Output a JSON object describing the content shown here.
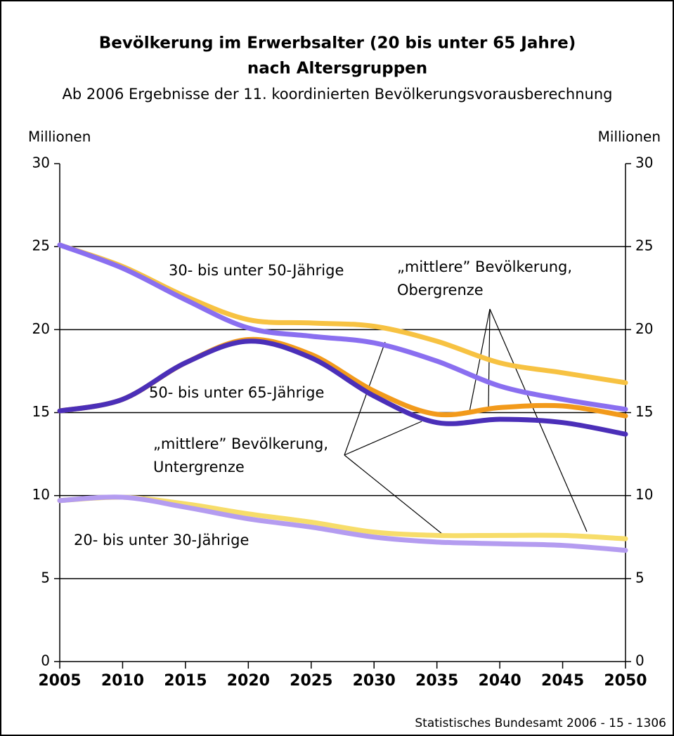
{
  "chart_data": {
    "type": "line",
    "title": [
      "Bevölkerung im Erwerbsalter (20 bis unter 65 Jahre)",
      "nach Altersgruppen"
    ],
    "subtitle": "Ab 2006 Ergebnisse der 11. koordinierten Bevölkerungsvorausberechnung",
    "ylabel": "Millionen",
    "y2label": "Millionen",
    "source": "Statistisches Bundesamt 2006 - 15 - 1306",
    "x": [
      2005,
      2010,
      2015,
      2020,
      2025,
      2030,
      2035,
      2040,
      2045,
      2050
    ],
    "xlim": [
      2005,
      2050
    ],
    "xticks": [
      2005,
      2010,
      2015,
      2020,
      2025,
      2030,
      2035,
      2040,
      2045,
      2050
    ],
    "ylim": [
      0,
      30
    ],
    "yticks": [
      0,
      5,
      10,
      15,
      20,
      25,
      30
    ],
    "y2lim": [
      0,
      30
    ],
    "y2ticks": [
      0,
      5,
      10,
      15,
      20,
      25,
      30
    ],
    "grid": true,
    "series": [
      {
        "color": "#f7c242",
        "values": [
          25.1,
          23.8,
          22.0,
          20.6,
          20.4,
          20.2,
          19.3,
          18.0,
          17.4,
          16.8
        ]
      },
      {
        "color": "#8a6ff0",
        "values": [
          25.1,
          23.7,
          21.8,
          20.1,
          19.6,
          19.2,
          18.1,
          16.6,
          15.8,
          15.2
        ]
      },
      {
        "color": "#f29a1b",
        "values": [
          15.1,
          15.8,
          18.0,
          19.4,
          18.5,
          16.3,
          14.9,
          15.3,
          15.4,
          14.8
        ]
      },
      {
        "color": "#4b2fb8",
        "values": [
          15.1,
          15.8,
          18.0,
          19.3,
          18.3,
          16.0,
          14.4,
          14.6,
          14.4,
          13.7
        ]
      },
      {
        "color": "#f7dd6a",
        "values": [
          9.7,
          9.9,
          9.5,
          8.9,
          8.4,
          7.8,
          7.6,
          7.6,
          7.6,
          7.4
        ]
      },
      {
        "color": "#b49cf0",
        "values": [
          9.7,
          9.9,
          9.3,
          8.6,
          8.1,
          7.5,
          7.2,
          7.1,
          7.0,
          6.7
        ]
      }
    ],
    "annotations": [
      "30- bis unter 50-Jährige",
      "50- bis unter 65-Jährige",
      "20- bis unter 30-Jährige",
      "„mittlere” Bevölkerung,",
      "Obergrenze",
      "„mittlere” Bevölkerung,",
      "Untergrenze"
    ]
  }
}
